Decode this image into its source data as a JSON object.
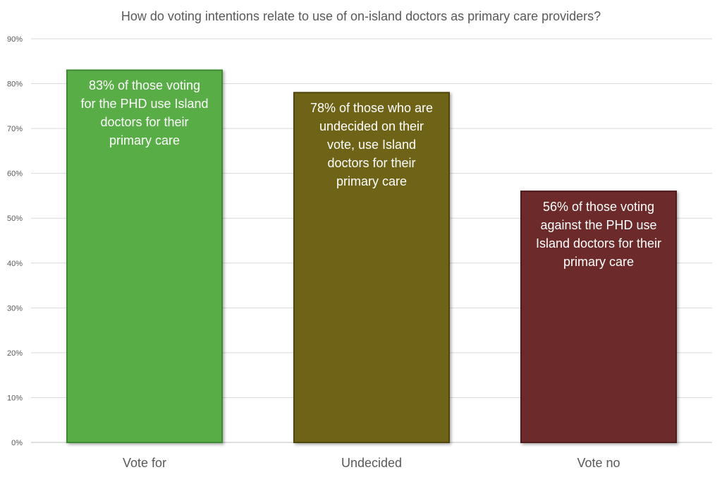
{
  "chart_data": {
    "type": "bar",
    "title": "How do voting intentions relate to use of on-island doctors as primary care providers?",
    "xlabel": "",
    "ylabel": "",
    "categories": [
      "Vote for",
      "Undecided",
      "Vote no"
    ],
    "values": [
      83,
      78,
      56
    ],
    "unit": "%",
    "ylim": [
      0,
      90
    ],
    "y_ticks": [
      "0%",
      "10%",
      "20%",
      "30%",
      "40%",
      "50%",
      "60%",
      "70%",
      "80%",
      "90%"
    ],
    "grid": true,
    "legend": "none",
    "bar_colors": [
      "#58ad47",
      "#6e6312",
      "#6c2a2a"
    ],
    "bar_outline_colors": [
      "#3e8a33",
      "#4e460c",
      "#4d1c1c"
    ],
    "data_labels": [
      [
        "83% of those voting",
        "for the PHD use Island",
        "doctors for their",
        "primary care"
      ],
      [
        "78% of those who are",
        "undecided on their",
        "vote, use Island",
        "doctors for their",
        "primary care"
      ],
      [
        "56% of those voting",
        "against  the PHD use",
        "Island doctors for their",
        "primary care"
      ]
    ]
  }
}
